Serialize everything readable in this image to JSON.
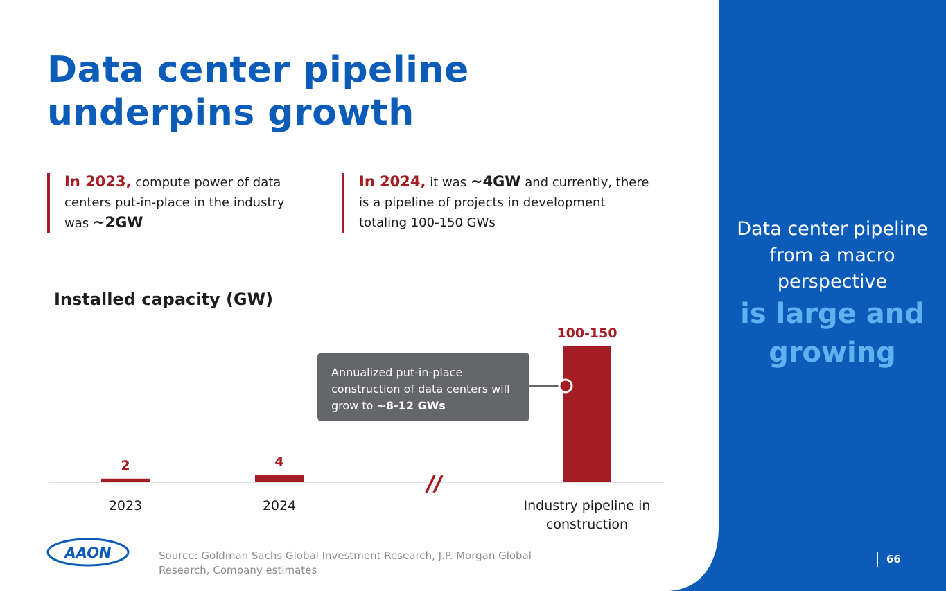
{
  "slide": {
    "title_line1": "Data center pipeline",
    "title_line2": "underpins growth",
    "page_number": "66"
  },
  "callouts": [
    {
      "lead": "In 2023,",
      "text1": " compute power of data centers put-in-place in the industry was ",
      "emph": "~2GW",
      "text2": ""
    },
    {
      "lead": "In 2024,",
      "text1": " it was ",
      "emph": "~4GW",
      "text2": " and currently, there is a pipeline of projects in development totaling 100-150 GWs"
    }
  ],
  "annotation": {
    "text": "Annualized put-in-place construction of data centers will grow to ",
    "emph": "~8-12 GWs"
  },
  "panel": {
    "text": "Data center pipeline from a macro perspective",
    "highlight": "is large and growing"
  },
  "footer": {
    "logo_text": "AAON",
    "source": "Source:  Goldman Sachs Global Investment Research, J.P. Morgan Global Research, Company estimates"
  },
  "colors": {
    "brand_blue": "#0b5cb8",
    "accent_red": "#a51d24",
    "highlight_blue": "#5fb1f0",
    "annotation_gray": "#65666a"
  },
  "chart_data": {
    "type": "bar",
    "title": "Installed capacity (GW)",
    "categories": [
      "2023",
      "2024",
      "Industry pipeline in construction"
    ],
    "values": [
      2,
      4,
      125
    ],
    "value_labels": [
      "2",
      "4",
      "100-150"
    ],
    "axis_break": true,
    "grid": false
  }
}
